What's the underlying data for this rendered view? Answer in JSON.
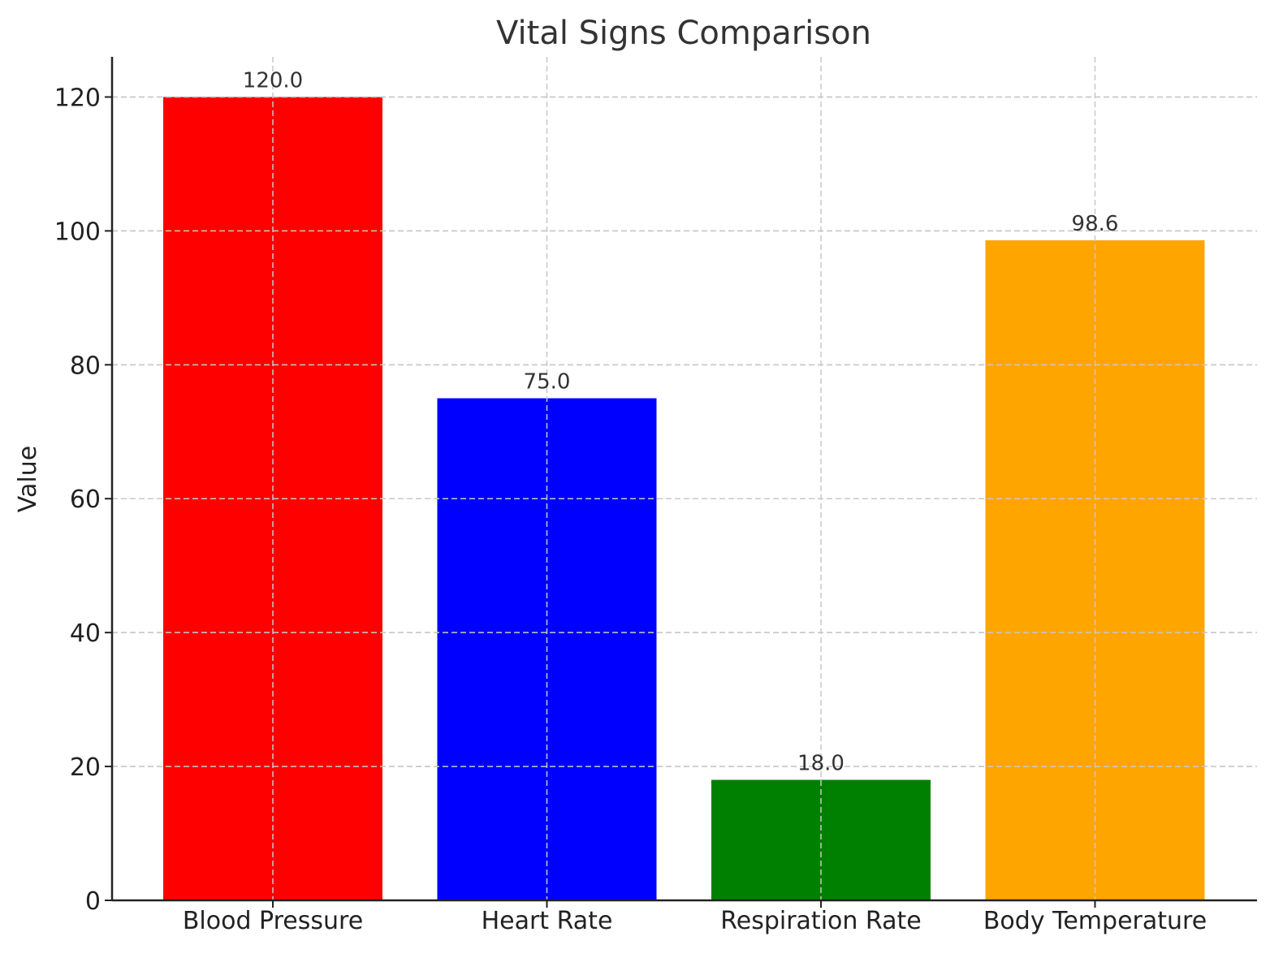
{
  "chart_data": {
    "type": "bar",
    "title": "Vital Signs Comparison",
    "xlabel": "",
    "ylabel": "Value",
    "categories": [
      "Blood Pressure",
      "Heart Rate",
      "Respiration Rate",
      "Body Temperature"
    ],
    "values": [
      120.0,
      75.0,
      18.0,
      98.6
    ],
    "data_labels": [
      "120.0",
      "75.0",
      "18.0",
      "98.6"
    ],
    "colors": [
      "#ff0000",
      "#0000ff",
      "#008000",
      "#ffa500"
    ],
    "ylim": [
      0,
      126
    ],
    "yticks": [
      0,
      20,
      40,
      60,
      80,
      100,
      120
    ],
    "grid": true,
    "legend": "none"
  }
}
